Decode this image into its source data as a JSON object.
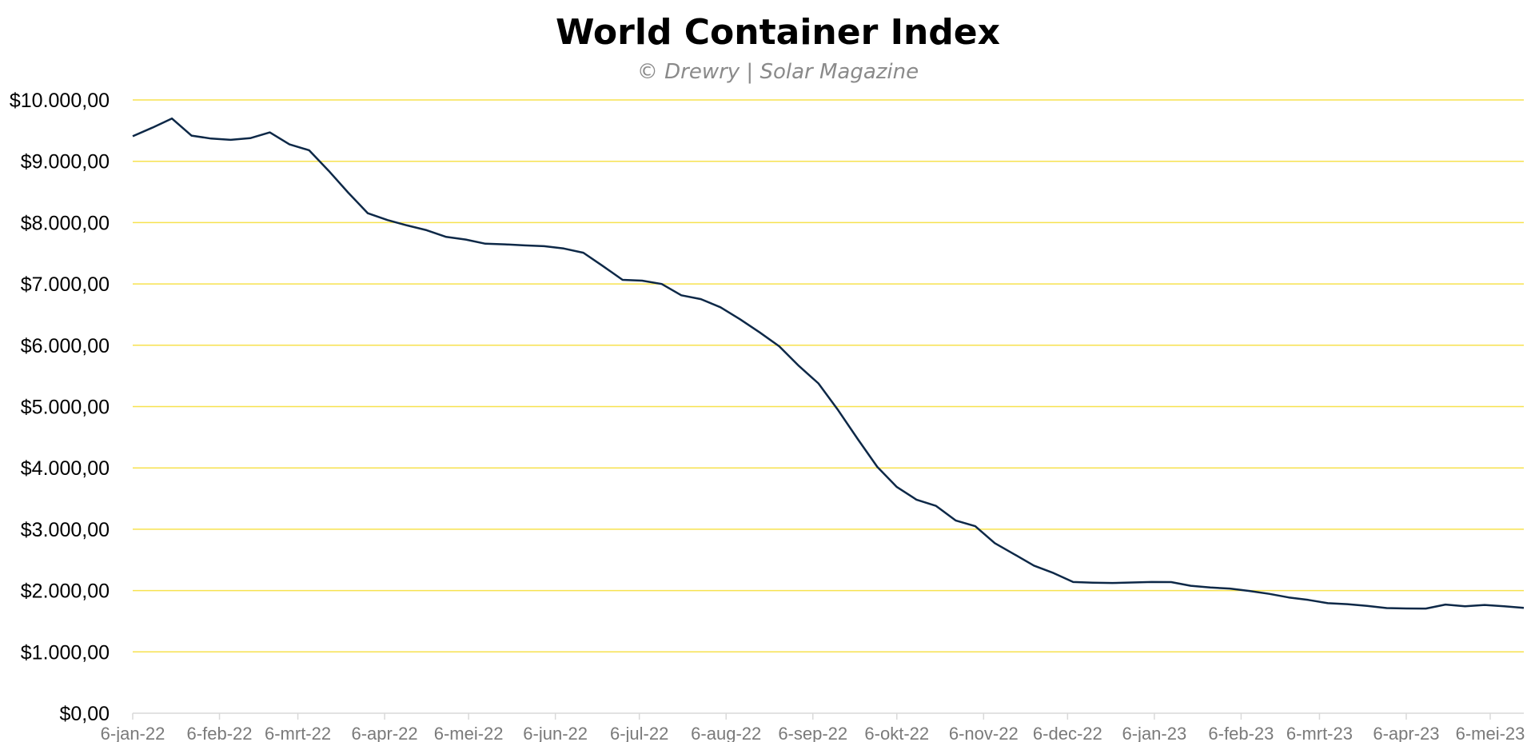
{
  "chart_data": {
    "type": "line",
    "title": "World Container Index",
    "subtitle": "© Drewry | Solar Magazine",
    "xlabel": "",
    "ylabel": "",
    "ylim": [
      0,
      10000
    ],
    "ytick_labels": [
      "$0,00",
      "$1.000,00",
      "$2.000,00",
      "$3.000,00",
      "$4.000,00",
      "$5.000,00",
      "$6.000,00",
      "$7.000,00",
      "$8.000,00",
      "$9.000,00",
      "$10.000,00"
    ],
    "yticks": [
      0,
      1000,
      2000,
      3000,
      4000,
      5000,
      6000,
      7000,
      8000,
      9000,
      10000
    ],
    "xtick_labels": [
      "6-jan-22",
      "6-feb-22",
      "6-mrt-22",
      "6-apr-22",
      "6-mei-22",
      "6-jun-22",
      "6-jul-22",
      "6-aug-22",
      "6-sep-22",
      "6-okt-22",
      "6-nov-22",
      "6-dec-22",
      "6-jan-23",
      "6-feb-23",
      "6-mrt-23",
      "6-apr-23",
      "6-mei-23"
    ],
    "xticks": [
      "2022-01-06",
      "2022-02-06",
      "2022-03-06",
      "2022-04-06",
      "2022-05-06",
      "2022-06-06",
      "2022-07-06",
      "2022-08-06",
      "2022-09-06",
      "2022-10-06",
      "2022-11-06",
      "2022-12-06",
      "2023-01-06",
      "2023-02-06",
      "2023-03-06",
      "2023-04-06",
      "2023-05-06"
    ],
    "xlim": [
      "2022-01-06",
      "2023-05-18"
    ],
    "grid": true,
    "grid_color": "#f7e24f",
    "line_color": "#0d2847",
    "series": [
      {
        "x": [
          "2022-01-06",
          "2022-01-13",
          "2022-01-20",
          "2022-01-27",
          "2022-02-03",
          "2022-02-10",
          "2022-02-17",
          "2022-02-24",
          "2022-03-03",
          "2022-03-10",
          "2022-03-17",
          "2022-03-24",
          "2022-03-31",
          "2022-04-07",
          "2022-04-14",
          "2022-04-21",
          "2022-04-28",
          "2022-05-05",
          "2022-05-12",
          "2022-05-19",
          "2022-05-26",
          "2022-06-02",
          "2022-06-09",
          "2022-06-16",
          "2022-06-23",
          "2022-06-30",
          "2022-07-07",
          "2022-07-14",
          "2022-07-21",
          "2022-07-28",
          "2022-08-04",
          "2022-08-11",
          "2022-08-18",
          "2022-08-25",
          "2022-09-01",
          "2022-09-08",
          "2022-09-15",
          "2022-09-22",
          "2022-09-29",
          "2022-10-06",
          "2022-10-13",
          "2022-10-20",
          "2022-10-27",
          "2022-11-03",
          "2022-11-10",
          "2022-11-17",
          "2022-11-24",
          "2022-12-01",
          "2022-12-08",
          "2022-12-15",
          "2022-12-22",
          "2022-12-29",
          "2023-01-05",
          "2023-01-12",
          "2023-01-19",
          "2023-01-26",
          "2023-02-02",
          "2023-02-09",
          "2023-02-16",
          "2023-02-23",
          "2023-03-02",
          "2023-03-09",
          "2023-03-16",
          "2023-03-23",
          "2023-03-30",
          "2023-04-06",
          "2023-04-13",
          "2023-04-20",
          "2023-04-27",
          "2023-05-04",
          "2023-05-11",
          "2023-05-18"
        ],
        "values": [
          9408,
          9547,
          9698,
          9419,
          9370,
          9350,
          9377,
          9471,
          9275,
          9180,
          8845,
          8487,
          8152,
          8042,
          7954,
          7876,
          7766,
          7724,
          7656,
          7646,
          7628,
          7616,
          7578,
          7508,
          7291,
          7066,
          7053,
          6999,
          6815,
          6752,
          6619,
          6424,
          6210,
          5983,
          5663,
          5378,
          4942,
          4472,
          4017,
          3689,
          3483,
          3381,
          3144,
          3049,
          2773,
          2591,
          2407,
          2286,
          2139,
          2129,
          2124,
          2132,
          2139,
          2138,
          2078,
          2049,
          2033,
          1993,
          1946,
          1888,
          1847,
          1794,
          1779,
          1750,
          1715,
          1708,
          1707,
          1772,
          1745,
          1765,
          1744,
          1719
        ]
      }
    ]
  }
}
